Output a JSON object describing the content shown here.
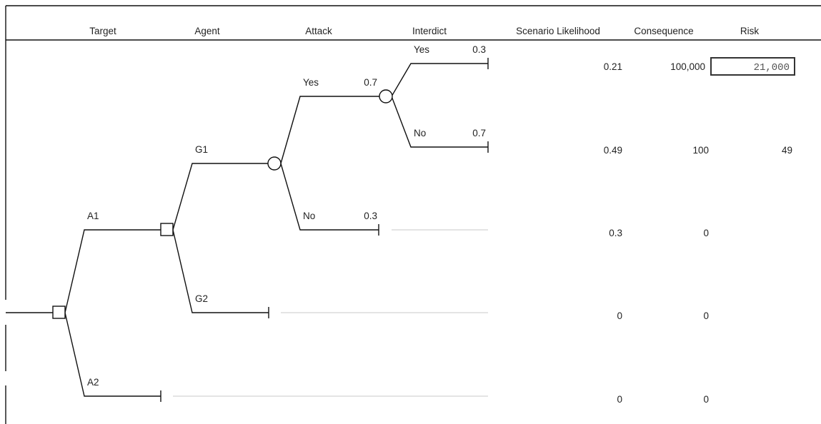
{
  "columns": {
    "target": "Target",
    "agent": "Agent",
    "attack": "Attack",
    "interdict": "Interdict",
    "likelihood": "Scenario Likelihood",
    "consequence": "Consequence",
    "risk": "Risk"
  },
  "branches": {
    "a1": "A1",
    "a2": "A2",
    "g1": "G1",
    "g2": "G2",
    "attack_yes": {
      "label": "Yes",
      "prob": "0.7"
    },
    "attack_no": {
      "label": "No",
      "prob": "0.3"
    },
    "interdict_yes": {
      "label": "Yes",
      "prob": "0.3"
    },
    "interdict_no": {
      "label": "No",
      "prob": "0.7"
    }
  },
  "rows": [
    {
      "likelihood": "0.21",
      "consequence": "100,000",
      "risk": "21,000",
      "highlighted": true
    },
    {
      "likelihood": "0.49",
      "consequence": "100",
      "risk": "49"
    },
    {
      "likelihood": "0.3",
      "consequence": "0",
      "risk": ""
    },
    {
      "likelihood": "0",
      "consequence": "0",
      "risk": ""
    },
    {
      "likelihood": "0",
      "consequence": "0",
      "risk": ""
    }
  ]
}
